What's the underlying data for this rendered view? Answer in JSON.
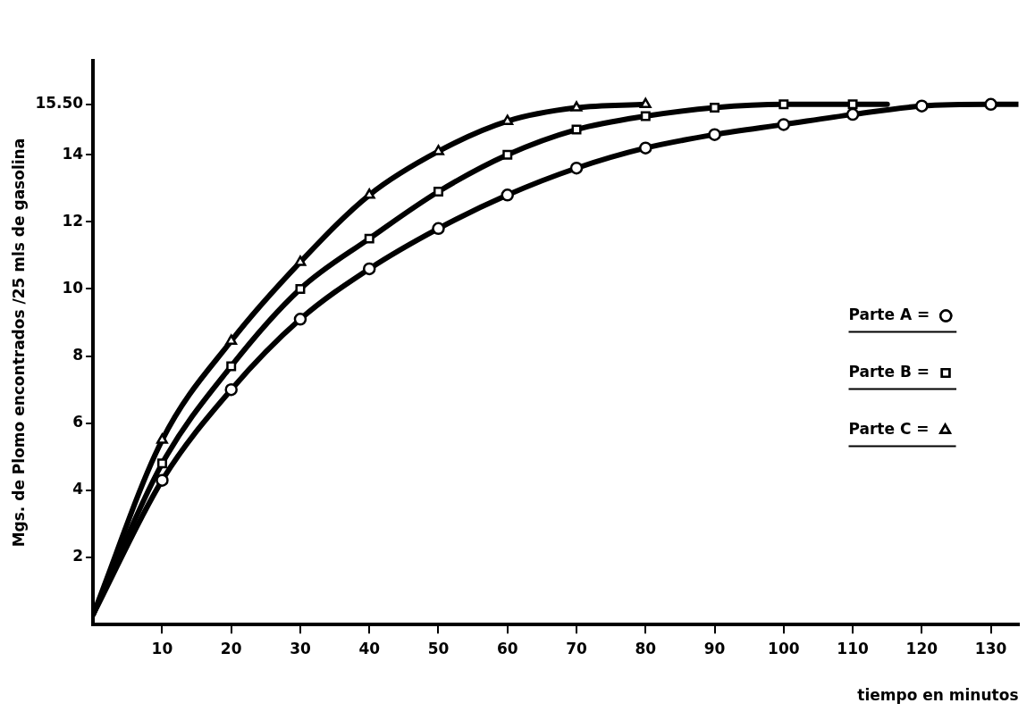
{
  "chart_data": {
    "type": "line",
    "xlabel": "tiempo en minutos",
    "ylabel": "Mgs. de Plomo encontrados /25 mls de gasolina",
    "xlim": [
      0,
      134
    ],
    "xticks": [
      10,
      20,
      30,
      40,
      50,
      60,
      70,
      80,
      90,
      100,
      110,
      120,
      130
    ],
    "ylim": [
      0,
      16.8
    ],
    "yticks": [
      2,
      4,
      6,
      8,
      10,
      12,
      14,
      {
        "value": 15.5,
        "label": "15.50"
      }
    ],
    "grid": false,
    "legend": "right",
    "line_style": "solid",
    "series": [
      {
        "name": "Parte A =",
        "color": "#000000",
        "marker": "circle",
        "x": [
          0,
          10,
          20,
          30,
          40,
          50,
          60,
          70,
          80,
          90,
          100,
          110,
          120,
          130,
          134
        ],
        "values": [
          0.3,
          4.3,
          7.0,
          9.1,
          10.6,
          11.8,
          12.8,
          13.6,
          14.2,
          14.6,
          14.9,
          15.2,
          15.45,
          15.5,
          15.5
        ]
      },
      {
        "name": "Parte B =",
        "color": "#000000",
        "marker": "square",
        "x": [
          0,
          10,
          20,
          30,
          40,
          50,
          60,
          70,
          80,
          90,
          100,
          110,
          115
        ],
        "values": [
          0.3,
          4.8,
          7.7,
          10.0,
          11.5,
          12.9,
          14.0,
          14.75,
          15.15,
          15.4,
          15.5,
          15.5,
          15.5
        ]
      },
      {
        "name": "Parte C =",
        "color": "#000000",
        "marker": "triangle",
        "x": [
          0,
          10,
          20,
          30,
          40,
          50,
          60,
          70,
          80
        ],
        "values": [
          0.3,
          5.5,
          8.45,
          10.8,
          12.8,
          14.1,
          15.0,
          15.4,
          15.5
        ]
      }
    ]
  }
}
